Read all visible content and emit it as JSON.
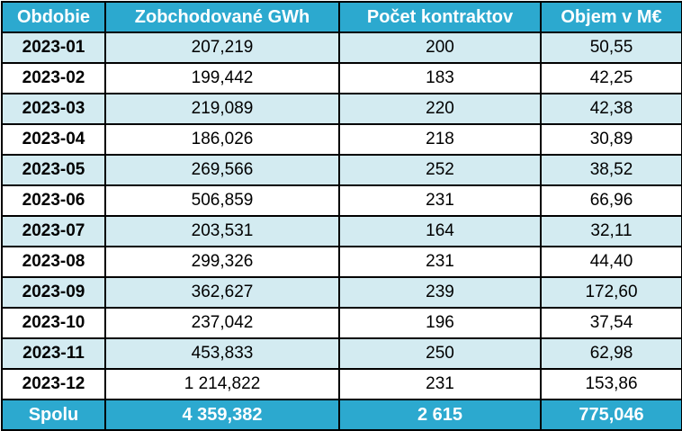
{
  "headers": {
    "period": "Obdobie",
    "gwh": "Zobchodované GWh",
    "contracts": "Počet kontraktov",
    "volume": "Objem v M€"
  },
  "rows": [
    {
      "period": "2023-01",
      "gwh": "207,219",
      "contracts": "200",
      "volume": "50,55"
    },
    {
      "period": "2023-02",
      "gwh": "199,442",
      "contracts": "183",
      "volume": "42,25"
    },
    {
      "period": "2023-03",
      "gwh": "219,089",
      "contracts": "220",
      "volume": "42,38"
    },
    {
      "period": "2023-04",
      "gwh": "186,026",
      "contracts": "218",
      "volume": "30,89"
    },
    {
      "period": "2023-05",
      "gwh": "269,566",
      "contracts": "252",
      "volume": "38,52"
    },
    {
      "period": "2023-06",
      "gwh": "506,859",
      "contracts": "231",
      "volume": "66,96"
    },
    {
      "period": "2023-07",
      "gwh": "203,531",
      "contracts": "164",
      "volume": "32,11"
    },
    {
      "period": "2023-08",
      "gwh": "299,326",
      "contracts": "231",
      "volume": "44,40"
    },
    {
      "period": "2023-09",
      "gwh": "362,627",
      "contracts": "239",
      "volume": "172,60"
    },
    {
      "period": "2023-10",
      "gwh": "237,042",
      "contracts": "196",
      "volume": "37,54"
    },
    {
      "period": "2023-11",
      "gwh": "453,833",
      "contracts": "250",
      "volume": "62,98"
    },
    {
      "period": "2023-12",
      "gwh": "1 214,822",
      "contracts": "231",
      "volume": "153,86"
    }
  ],
  "totals": {
    "period": "Spolu",
    "gwh": "4 359,382",
    "contracts": "2 615",
    "volume": "775,046"
  },
  "colors": {
    "header_bg": "#2ca9cf",
    "header_text": "#ffffff",
    "stripe_bg": "#d3ebf1",
    "row_bg": "#ffffff",
    "border": "#000000"
  }
}
